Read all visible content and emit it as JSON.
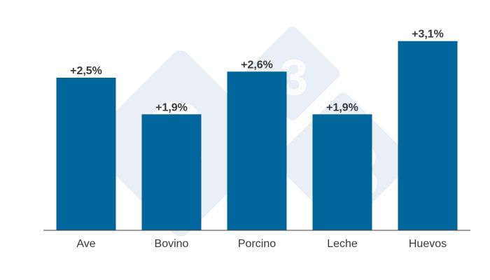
{
  "chart_data": {
    "type": "bar",
    "title": "",
    "xlabel": "",
    "ylabel": "",
    "categories": [
      "Ave",
      "Bovino",
      "Porcino",
      "Leche",
      "Huevos"
    ],
    "values": [
      2.5,
      1.9,
      2.6,
      1.9,
      3.1
    ],
    "data_labels": [
      "+2,5%",
      "+1,9%",
      "+2,6%",
      "+1,9%",
      "+3,1%"
    ],
    "ylim": [
      0,
      3.2
    ],
    "grid": false,
    "legend": "none",
    "colors": {
      "bar": "#00659a",
      "axis": "#404040",
      "text": "#3a3a3a",
      "watermark": "#e7eef4"
    },
    "watermark": "333"
  }
}
